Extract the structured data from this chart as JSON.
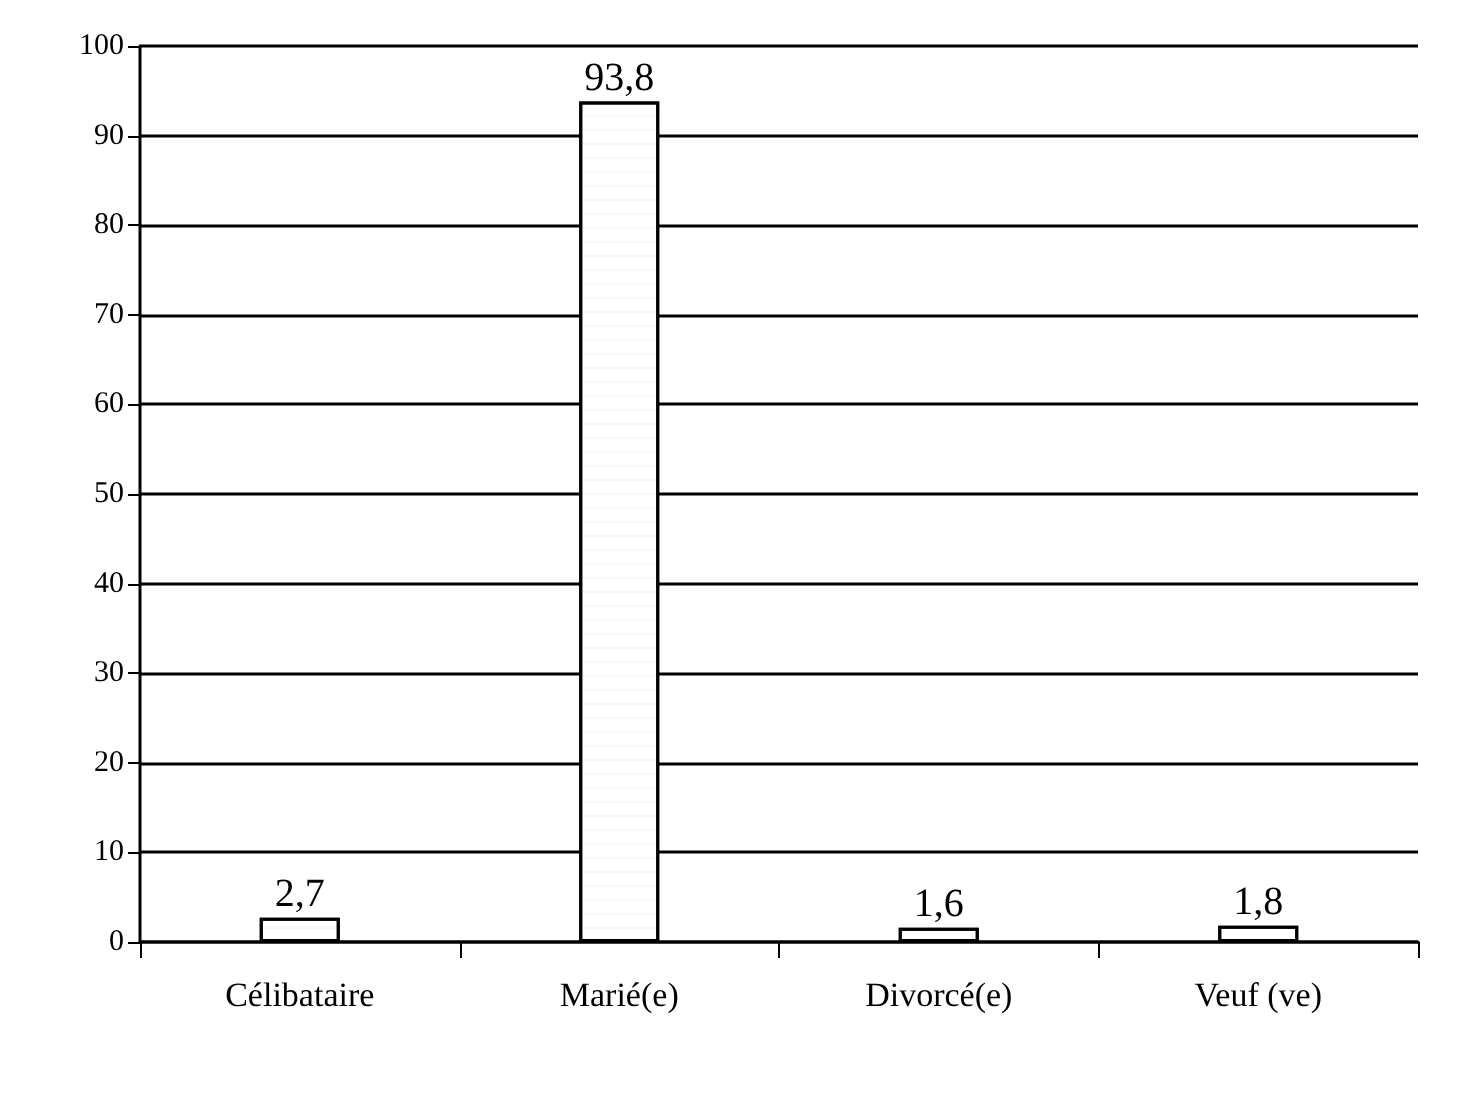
{
  "chart_data": {
    "type": "bar",
    "categories": [
      "Célibataire",
      "Marié(e)",
      "Divorcé(e)",
      "Veuf (ve)"
    ],
    "values": [
      2.7,
      93.8,
      1.6,
      1.8
    ],
    "value_labels": [
      "2,7",
      "93,8",
      "1,6",
      "1,8"
    ],
    "color": "#ffffff",
    "ylim": [
      0,
      100
    ],
    "yticks": [
      0,
      10,
      20,
      30,
      40,
      50,
      60,
      70,
      80,
      90,
      100
    ],
    "grid": "y"
  }
}
